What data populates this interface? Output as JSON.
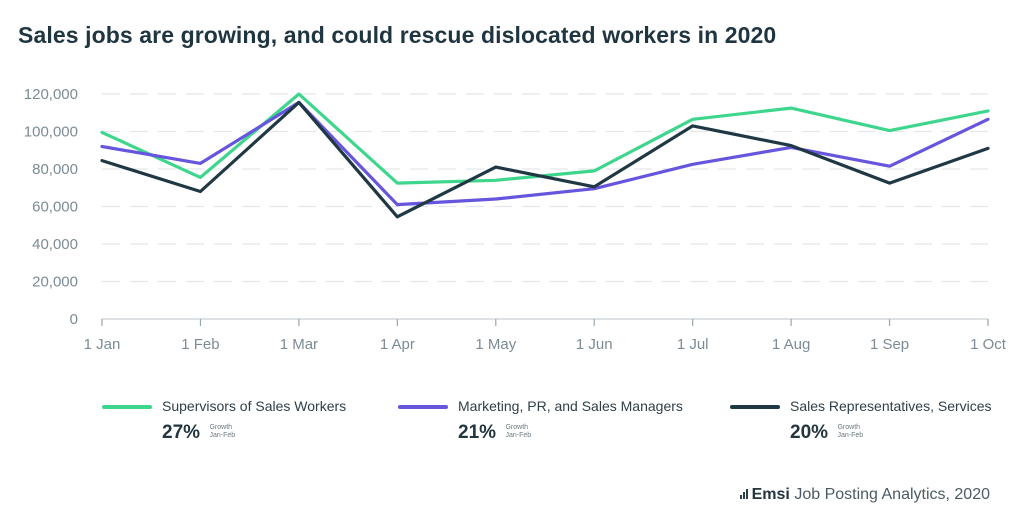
{
  "title": "Sales jobs are growing, and could rescue dislocated workers in 2020",
  "chart_data": {
    "type": "line",
    "title": "Sales jobs are growing, and could rescue dislocated workers in 2020",
    "categories": [
      "1 Jan",
      "1 Feb",
      "1 Mar",
      "1 Apr",
      "1 May",
      "1 Jun",
      "1 Jul",
      "1 Aug",
      "1 Sep",
      "1 Oct"
    ],
    "y_ticks": [
      "0",
      "20,000",
      "40,000",
      "60,000",
      "80,000",
      "100,000",
      "120,000"
    ],
    "ylim": [
      0,
      120000
    ],
    "grid": true,
    "legend_position": "bottom",
    "series": [
      {
        "name": "Supervisors of Sales Workers",
        "color": "#3ed68c",
        "values": [
          99500,
          75500,
          120000,
          72500,
          74000,
          79000,
          106500,
          112500,
          100500,
          111000
        ]
      },
      {
        "name": "Marketing, PR, and Sales Managers",
        "color": "#6656dd",
        "values": [
          92000,
          83000,
          115500,
          61000,
          64000,
          69500,
          82500,
          91500,
          81500,
          106500
        ]
      },
      {
        "name": "Sales Representatives, Services",
        "color": "#1f3844",
        "values": [
          84500,
          68000,
          115500,
          54500,
          81000,
          70500,
          103000,
          92500,
          72500,
          91000
        ]
      }
    ]
  },
  "legend": [
    {
      "label": "Supervisors of Sales Workers",
      "growth": "27%",
      "note_line1": "Growth",
      "note_line2": "Jan-Feb"
    },
    {
      "label": "Marketing, PR, and Sales Managers",
      "growth": "21%",
      "note_line1": "Growth",
      "note_line2": "Jan-Feb"
    },
    {
      "label": "Sales Representatives, Services",
      "growth": "20%",
      "note_line1": "Growth",
      "note_line2": "Jan-Feb"
    }
  ],
  "footer": {
    "brand": "Emsi",
    "text": " Job Posting Analytics, 2020",
    "icon": "bar-chart-icon"
  }
}
